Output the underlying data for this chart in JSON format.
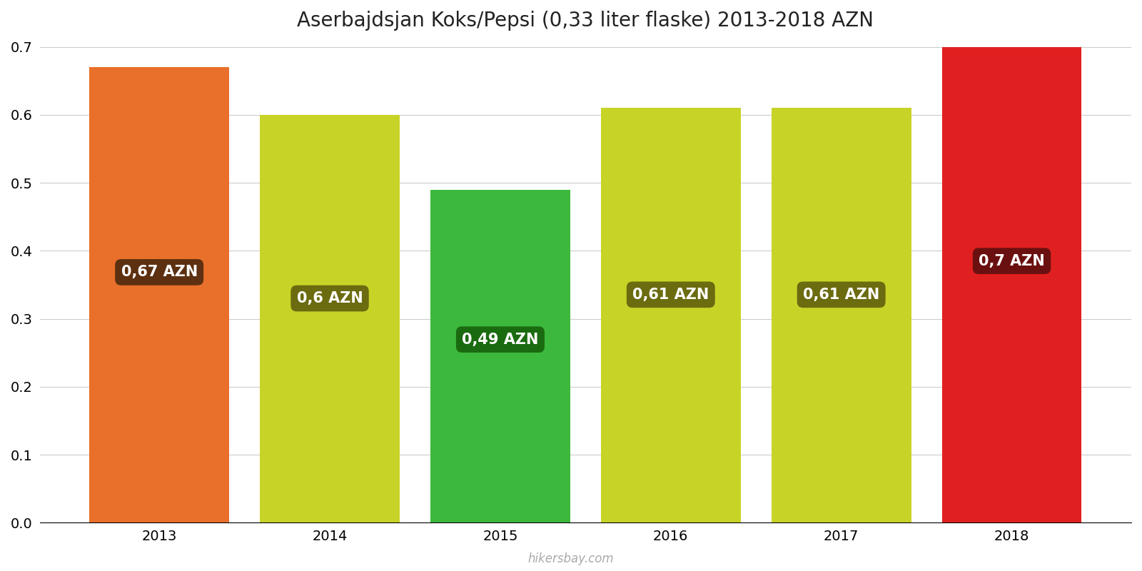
{
  "title": "Aserbajdsjan Koks/Pepsi (0,33 liter flaske) 2013-2018 AZN",
  "years": [
    2013,
    2014,
    2015,
    2016,
    2017,
    2018
  ],
  "values": [
    0.67,
    0.6,
    0.49,
    0.61,
    0.61,
    0.7
  ],
  "labels": [
    "0,67 AZN",
    "0,6 AZN",
    "0,49 AZN",
    "0,61 AZN",
    "0,61 AZN",
    "0,7 AZN"
  ],
  "bar_colors": [
    "#E8702A",
    "#C8D327",
    "#3CB83C",
    "#C8D327",
    "#C8D327",
    "#E02020"
  ],
  "label_box_colors": [
    "#5C3010",
    "#6B6B10",
    "#1A6B10",
    "#6B6B10",
    "#6B6B10",
    "#6B1010"
  ],
  "ylim": [
    0,
    0.7
  ],
  "yticks": [
    0,
    0.1,
    0.2,
    0.3,
    0.4,
    0.5,
    0.6,
    0.7
  ],
  "background_color": "#ffffff",
  "watermark": "hikersbay.com",
  "title_fontsize": 20,
  "tick_fontsize": 14,
  "label_fontsize": 15
}
